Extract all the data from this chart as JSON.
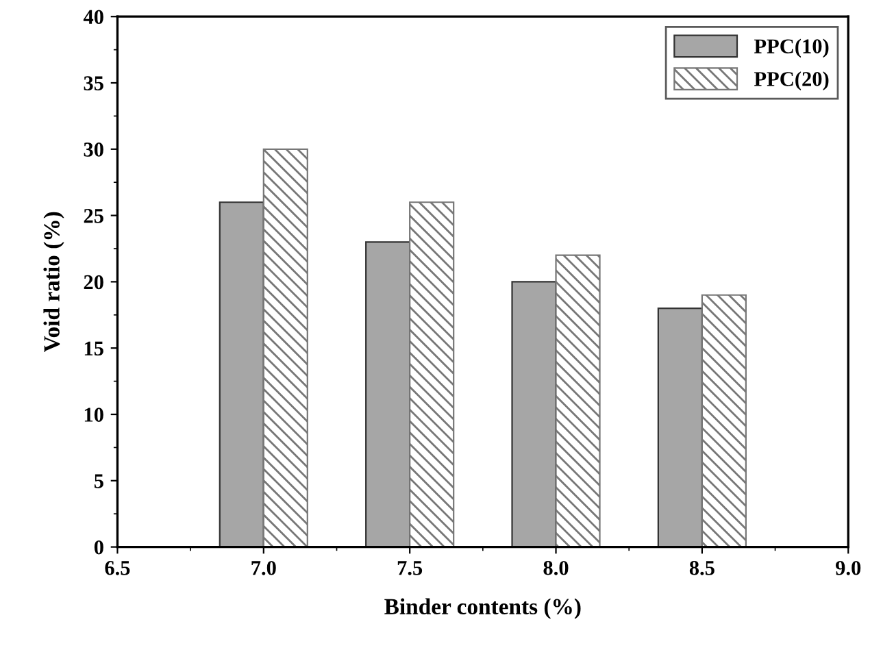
{
  "chart_data": {
    "type": "bar",
    "xlabel": "Binder contents (%)",
    "ylabel": "Void ratio (%)",
    "x": [
      7.0,
      7.5,
      8.0,
      8.5
    ],
    "series": [
      {
        "name": "PPC(10)",
        "color": "#a6a6a6",
        "values": [
          26,
          23,
          20,
          18
        ]
      },
      {
        "name": "PPC(20)",
        "color": "#777777",
        "values": [
          30,
          26,
          22,
          19
        ]
      }
    ],
    "xlim": [
      6.5,
      9.0
    ],
    "xticks": [
      {
        "value": 6.5,
        "label": "6.5"
      },
      {
        "value": 7.0,
        "label": "7.0"
      },
      {
        "value": 7.5,
        "label": "7.5"
      },
      {
        "value": 8.0,
        "label": "8.0"
      },
      {
        "value": 8.5,
        "label": "8.5"
      },
      {
        "value": 9.0,
        "label": "9.0"
      }
    ],
    "ylim": [
      0,
      40
    ],
    "yticks": [
      0,
      5,
      10,
      15,
      20,
      25,
      30,
      35,
      40
    ],
    "legend": "top right",
    "grid": false
  }
}
